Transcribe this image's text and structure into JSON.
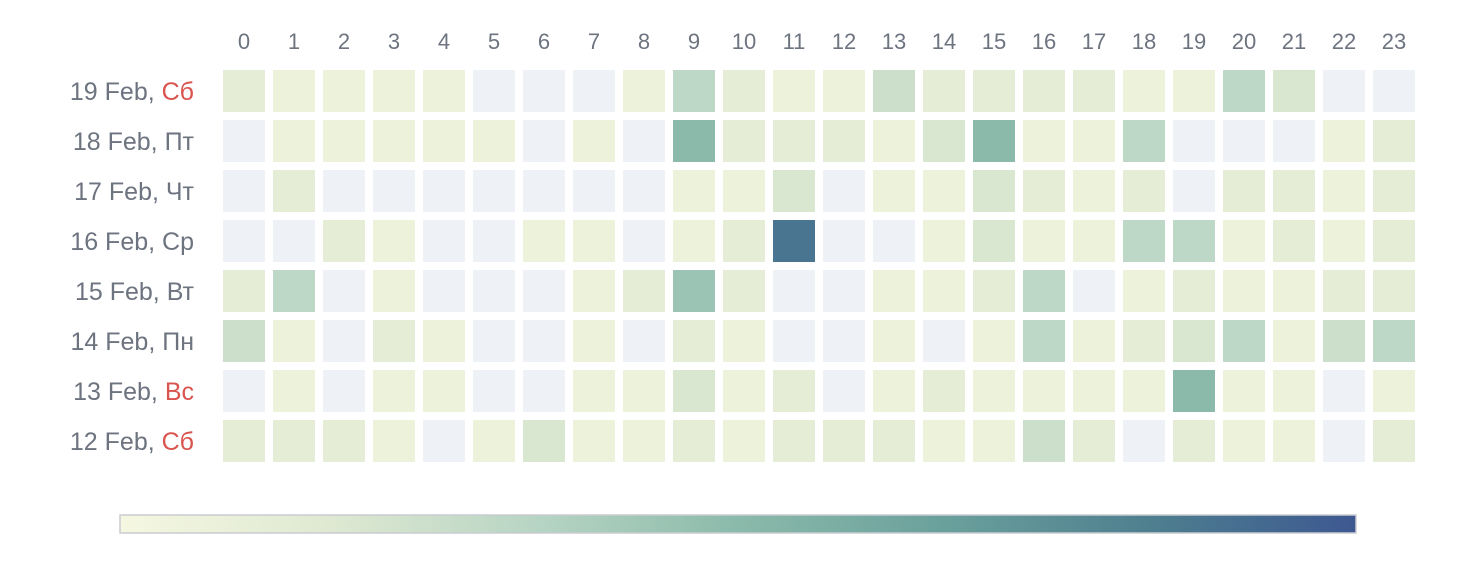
{
  "chart_data": {
    "type": "heatmap",
    "title": "",
    "x": [
      "0",
      "1",
      "2",
      "3",
      "4",
      "5",
      "6",
      "7",
      "8",
      "9",
      "10",
      "11",
      "12",
      "13",
      "14",
      "15",
      "16",
      "17",
      "18",
      "19",
      "20",
      "21",
      "22",
      "23"
    ],
    "rows": [
      {
        "date": "19 Feb, ",
        "weekday": "Сб",
        "weekend": true
      },
      {
        "date": "18 Feb, ",
        "weekday": "Пт",
        "weekend": false
      },
      {
        "date": "17 Feb, ",
        "weekday": "Чт",
        "weekend": false
      },
      {
        "date": "16 Feb, ",
        "weekday": "Ср",
        "weekend": false
      },
      {
        "date": "15 Feb, ",
        "weekday": "Вт",
        "weekend": false
      },
      {
        "date": "14 Feb, ",
        "weekday": "Пн",
        "weekend": false
      },
      {
        "date": "13 Feb, ",
        "weekday": "Вс",
        "weekend": true
      },
      {
        "date": "12 Feb, ",
        "weekday": "Сб",
        "weekend": true
      }
    ],
    "values": [
      [
        2,
        1,
        1,
        1,
        1,
        0,
        0,
        0,
        1,
        5,
        2,
        1,
        1,
        4,
        2,
        2,
        2,
        2,
        1,
        1,
        5,
        3,
        0,
        0
      ],
      [
        0,
        1,
        1,
        1,
        1,
        1,
        0,
        1,
        0,
        8,
        2,
        2,
        2,
        1,
        3,
        8,
        1,
        1,
        5,
        0,
        0,
        0,
        1,
        2
      ],
      [
        0,
        2,
        0,
        0,
        0,
        0,
        0,
        0,
        0,
        1,
        1,
        3,
        0,
        1,
        1,
        3,
        2,
        1,
        2,
        0,
        2,
        2,
        1,
        2
      ],
      [
        0,
        0,
        2,
        1,
        0,
        0,
        1,
        1,
        0,
        1,
        2,
        14,
        0,
        0,
        1,
        3,
        1,
        1,
        5,
        5,
        1,
        2,
        1,
        2
      ],
      [
        2,
        5,
        0,
        1,
        0,
        0,
        0,
        1,
        2,
        7,
        2,
        0,
        0,
        1,
        1,
        2,
        5,
        0,
        1,
        2,
        1,
        1,
        2,
        2
      ],
      [
        4,
        1,
        0,
        2,
        1,
        0,
        0,
        1,
        0,
        2,
        1,
        0,
        0,
        1,
        0,
        1,
        5,
        1,
        2,
        3,
        5,
        1,
        4,
        5
      ],
      [
        0,
        1,
        0,
        1,
        1,
        0,
        0,
        1,
        1,
        3,
        1,
        2,
        0,
        1,
        2,
        1,
        1,
        1,
        1,
        8,
        1,
        1,
        0,
        1
      ],
      [
        2,
        2,
        2,
        1,
        0,
        1,
        3,
        1,
        1,
        2,
        1,
        2,
        2,
        2,
        1,
        1,
        4,
        2,
        0,
        2,
        1,
        1,
        0,
        2
      ]
    ],
    "color_scale": {
      "min": 0,
      "max": 16,
      "zero_color": "#eef2f7",
      "stops": [
        "#f5f7e1",
        "#dfe9d2",
        "#b8d5c4",
        "#8bbaaa",
        "#6aa09c",
        "#4e7f8f",
        "#3d5891"
      ]
    },
    "legend": "colorbar-bottom",
    "grid": false
  }
}
